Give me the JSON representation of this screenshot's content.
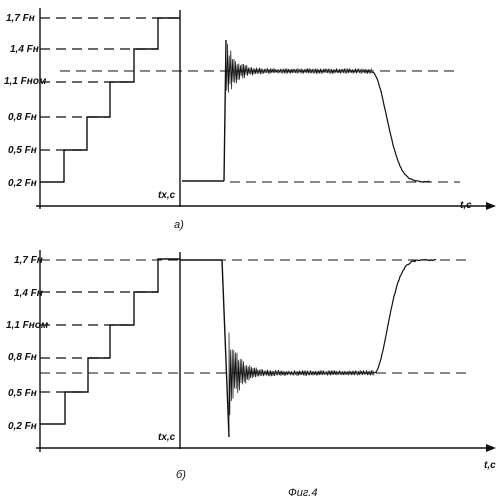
{
  "colors": {
    "ink": "#111111",
    "background": "#ffffff"
  },
  "figure_caption": "Фиг.4",
  "panels": [
    {
      "id": "a",
      "panel_label": "а)",
      "load_levels": [
        "1,7 Fн",
        "1,4 Fн",
        "1,1 Fном",
        "0,8 Fн",
        "0,5 Fн",
        "0,2 Fн"
      ],
      "time_axis_label": "t,c",
      "left_axis_label": "tх,c"
    },
    {
      "id": "b",
      "panel_label": "б)",
      "load_levels": [
        "1,7 Fн",
        "1,4 Fн",
        "1,1 Fном",
        "0,8 Fн",
        "0,5 Fн",
        "0,2 Fн"
      ],
      "time_axis_label": "t,c",
      "left_axis_label": "tх,c"
    }
  ]
}
